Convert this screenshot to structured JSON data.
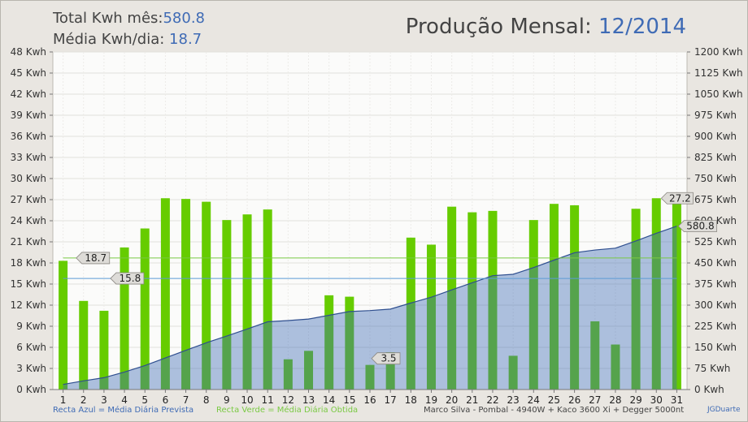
{
  "header": {
    "total_label": "Total Kwh mês:",
    "total_value": "580.8",
    "avg_label": "Média Kwh/dia:",
    "avg_value": "18.7",
    "title_label": "Produção Mensal:",
    "title_value": "12/2014"
  },
  "footer": {
    "blue_legend": "Recta Azul = Média Diária Prevista",
    "green_legend": "Recta Verde = Média Diária Obtida",
    "system_info": "Marco Silva - Pombal - 4940W + Kaco 3600 Xi + Degger 5000nt",
    "credit": "JGDuarte"
  },
  "colors": {
    "bar_green": "#66cc00",
    "area_blue": "#3f6bb5",
    "value_blue": "#3f6bb5",
    "avg_green_line": "#7ac943",
    "pred_blue_line": "#5b9bd5"
  },
  "chart_data": {
    "type": "bar",
    "categories": [
      "1",
      "2",
      "3",
      "4",
      "5",
      "6",
      "7",
      "8",
      "9",
      "10",
      "11",
      "12",
      "13",
      "14",
      "15",
      "16",
      "17",
      "18",
      "19",
      "20",
      "21",
      "22",
      "23",
      "24",
      "25",
      "26",
      "27",
      "28",
      "29",
      "30",
      "31"
    ],
    "series": [
      {
        "axis": "left",
        "type": "bar",
        "values": [
          18.3,
          12.6,
          11.2,
          20.2,
          22.9,
          27.2,
          27.1,
          26.7,
          24.1,
          24.9,
          25.6,
          4.3,
          5.5,
          13.4,
          13.2,
          3.5,
          5.3,
          21.6,
          20.6,
          26.0,
          25.2,
          25.4,
          4.8,
          24.1,
          26.4,
          26.2,
          9.7,
          6.4,
          25.7,
          27.2,
          27.2
        ]
      },
      {
        "axis": "right",
        "type": "area",
        "values": [
          18.3,
          30.9,
          42.1,
          62.3,
          85.2,
          112.4,
          139.5,
          166.2,
          190.3,
          215.2,
          240.8,
          245.1,
          250.6,
          264.0,
          277.2,
          280.7,
          286.0,
          307.6,
          328.2,
          354.2,
          379.4,
          404.8,
          409.6,
          433.7,
          460.1,
          486.3,
          496.0,
          502.4,
          528.1,
          555.3,
          580.8
        ]
      }
    ],
    "reference_lines": [
      {
        "color": "green",
        "value": 18.7,
        "label": "18.7"
      },
      {
        "color": "blue",
        "value": 15.8,
        "label": "15.8"
      }
    ],
    "callouts": [
      {
        "day": "16",
        "label": "3.5"
      },
      {
        "day": "31",
        "label": "27.2"
      },
      {
        "day": "31",
        "label": "580.8",
        "axis": "right"
      }
    ],
    "y_left": {
      "min": 0,
      "max": 48,
      "step": 3,
      "unit": " Kwh"
    },
    "y_right": {
      "min": 0,
      "max": 1200,
      "step": 75,
      "unit": " Kwh"
    },
    "grid": true
  }
}
